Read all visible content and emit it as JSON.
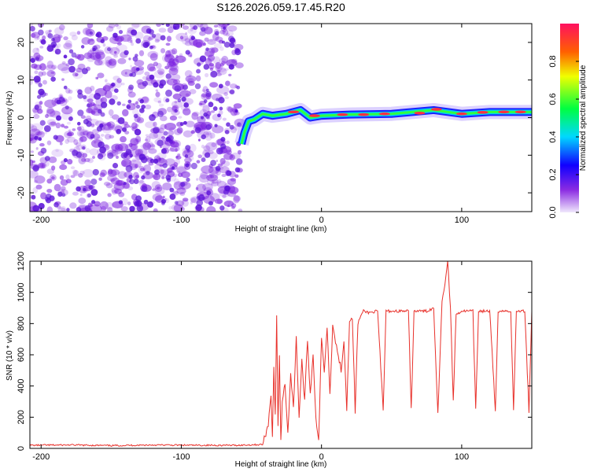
{
  "title": "S126.2026.059.17.45.R20",
  "colors": {
    "signal_line": "#e8302a",
    "noise_purple": "#7a1fe0",
    "axis": "#000000",
    "background": "#ffffff"
  },
  "chart_data": [
    {
      "type": "heatmap",
      "name": "spectrogram",
      "xlabel": "Height of straight line (km)",
      "ylabel": "Frequency (Hz)",
      "xlim": [
        -208,
        150
      ],
      "ylim": [
        -25,
        25
      ],
      "xticks": [
        -200,
        -100,
        0,
        100
      ],
      "yticks": [
        -20,
        -10,
        0,
        10,
        20
      ],
      "noise_region_x": [
        -208,
        -58
      ],
      "carrier_track": [
        {
          "x": -57,
          "y": -7
        },
        {
          "x": -55,
          "y": -4
        },
        {
          "x": -52,
          "y": -1
        },
        {
          "x": -48,
          "y": -0.5
        },
        {
          "x": -42,
          "y": 1
        },
        {
          "x": -35,
          "y": 0.5
        },
        {
          "x": -25,
          "y": 1
        },
        {
          "x": -15,
          "y": 2
        },
        {
          "x": -8,
          "y": 0
        },
        {
          "x": 0,
          "y": 0.5
        },
        {
          "x": 20,
          "y": 0.8
        },
        {
          "x": 50,
          "y": 1
        },
        {
          "x": 80,
          "y": 2
        },
        {
          "x": 100,
          "y": 1
        },
        {
          "x": 120,
          "y": 1.5
        },
        {
          "x": 150,
          "y": 1.5
        }
      ],
      "colorbar": {
        "label": "Normalized spectral amplitude",
        "range": [
          0,
          1
        ],
        "ticks": [
          "0.0",
          "0.2",
          "0.4",
          "0.6",
          "0.8"
        ]
      }
    },
    {
      "type": "line",
      "name": "snr",
      "xlabel": "Height of straight line (km)",
      "ylabel": "SNR (10 * v/v)",
      "xlim": [
        -208,
        150
      ],
      "ylim": [
        0,
        1200
      ],
      "xticks": [
        -200,
        -100,
        0,
        100
      ],
      "yticks": [
        0,
        200,
        400,
        600,
        800,
        1000,
        1200
      ],
      "series": [
        {
          "name": "SNR",
          "points": [
            [
              -208,
              20
            ],
            [
              -180,
              22
            ],
            [
              -150,
              18
            ],
            [
              -120,
              22
            ],
            [
              -90,
              20
            ],
            [
              -60,
              20
            ],
            [
              -42,
              25
            ],
            [
              -38,
              150
            ],
            [
              -36,
              350
            ],
            [
              -35,
              80
            ],
            [
              -34,
              520
            ],
            [
              -33,
              200
            ],
            [
              -32,
              850
            ],
            [
              -31,
              150
            ],
            [
              -30,
              600
            ],
            [
              -29,
              50
            ],
            [
              -28,
              300
            ],
            [
              -26,
              420
            ],
            [
              -24,
              100
            ],
            [
              -22,
              480
            ],
            [
              -20,
              250
            ],
            [
              -18,
              720
            ],
            [
              -16,
              200
            ],
            [
              -14,
              560
            ],
            [
              -12,
              300
            ],
            [
              -10,
              700
            ],
            [
              -8,
              350
            ],
            [
              -6,
              600
            ],
            [
              -4,
              200
            ],
            [
              -2,
              50
            ],
            [
              0,
              700
            ],
            [
              2,
              500
            ],
            [
              4,
              780
            ],
            [
              6,
              350
            ],
            [
              8,
              800
            ],
            [
              10,
              680
            ],
            [
              12,
              600
            ],
            [
              14,
              500
            ],
            [
              16,
              700
            ],
            [
              18,
              250
            ],
            [
              20,
              820
            ],
            [
              22,
              830
            ],
            [
              24,
              240
            ],
            [
              26,
              800
            ],
            [
              28,
              850
            ],
            [
              30,
              880
            ],
            [
              34,
              870
            ],
            [
              40,
              880
            ],
            [
              44,
              240
            ],
            [
              46,
              880
            ],
            [
              55,
              880
            ],
            [
              62,
              880
            ],
            [
              64,
              240
            ],
            [
              66,
              880
            ],
            [
              75,
              880
            ],
            [
              80,
              900
            ],
            [
              83,
              230
            ],
            [
              86,
              950
            ],
            [
              88,
              1050
            ],
            [
              90,
              1200
            ],
            [
              92,
              900
            ],
            [
              94,
              300
            ],
            [
              96,
              860
            ],
            [
              100,
              880
            ],
            [
              108,
              880
            ],
            [
              110,
              240
            ],
            [
              112,
              880
            ],
            [
              120,
              880
            ],
            [
              124,
              240
            ],
            [
              126,
              880
            ],
            [
              135,
              880
            ],
            [
              137,
              240
            ],
            [
              139,
              880
            ],
            [
              145,
              880
            ],
            [
              148,
              240
            ],
            [
              150,
              880
            ]
          ]
        }
      ]
    }
  ]
}
